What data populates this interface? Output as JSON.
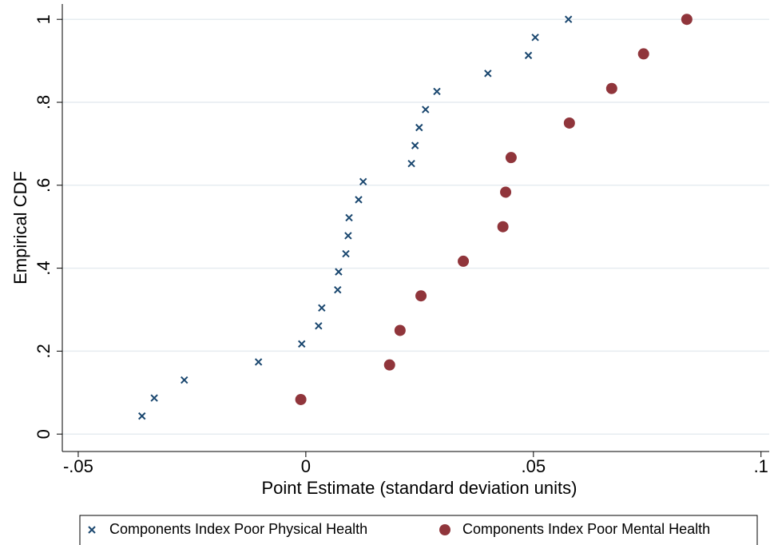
{
  "chart_data": {
    "type": "scatter",
    "x_label": "Point Estimate (standard deviation units)",
    "y_label": "Empirical CDF",
    "xlim": [
      -0.0535,
      0.1018
    ],
    "ylim": [
      -0.042,
      1.037
    ],
    "xticks": [
      {
        "value": -0.05,
        "label": "-.05"
      },
      0,
      {
        "value": 0.05,
        "label": ".05"
      },
      {
        "value": 0.1,
        "label": ".1"
      }
    ],
    "yticks": [
      0,
      {
        "value": 0.2,
        "label": ".2"
      },
      {
        "value": 0.4,
        "label": ".4"
      },
      {
        "value": 0.6,
        "label": ".6"
      },
      {
        "value": 0.8,
        "label": ".8"
      },
      1
    ],
    "grid": true,
    "legend": "bottom",
    "series": [
      {
        "name": "Components Index Poor Physical Health",
        "color": "#1a476f",
        "marker": "x",
        "x": [
          -0.036,
          -0.0333,
          -0.0267,
          -0.0104,
          -0.0009,
          0.0028,
          0.0035,
          0.007,
          0.0072,
          0.0088,
          0.0093,
          0.0095,
          0.0116,
          0.0126,
          0.0232,
          0.024,
          0.0249,
          0.0263,
          0.0288,
          0.04,
          0.0489,
          0.0504,
          0.0577
        ],
        "values": [
          0.0435,
          0.087,
          0.1304,
          0.1739,
          0.2174,
          0.2609,
          0.3043,
          0.3478,
          0.3913,
          0.4348,
          0.4783,
          0.5217,
          0.5652,
          0.6087,
          0.6522,
          0.6957,
          0.7391,
          0.7826,
          0.8261,
          0.8696,
          0.913,
          0.9565,
          1
        ]
      },
      {
        "name": "Components Index Poor Mental Health",
        "color": "#90353b",
        "marker": "circle",
        "x": [
          -0.0011,
          0.0184,
          0.0207,
          0.0253,
          0.0346,
          0.0433,
          0.0439,
          0.0451,
          0.0579,
          0.0672,
          0.0742,
          0.0837
        ],
        "values": [
          0.0833,
          0.1667,
          0.25,
          0.3333,
          0.4167,
          0.5,
          0.5833,
          0.6667,
          0.75,
          0.8333,
          0.9167,
          1
        ]
      }
    ]
  }
}
